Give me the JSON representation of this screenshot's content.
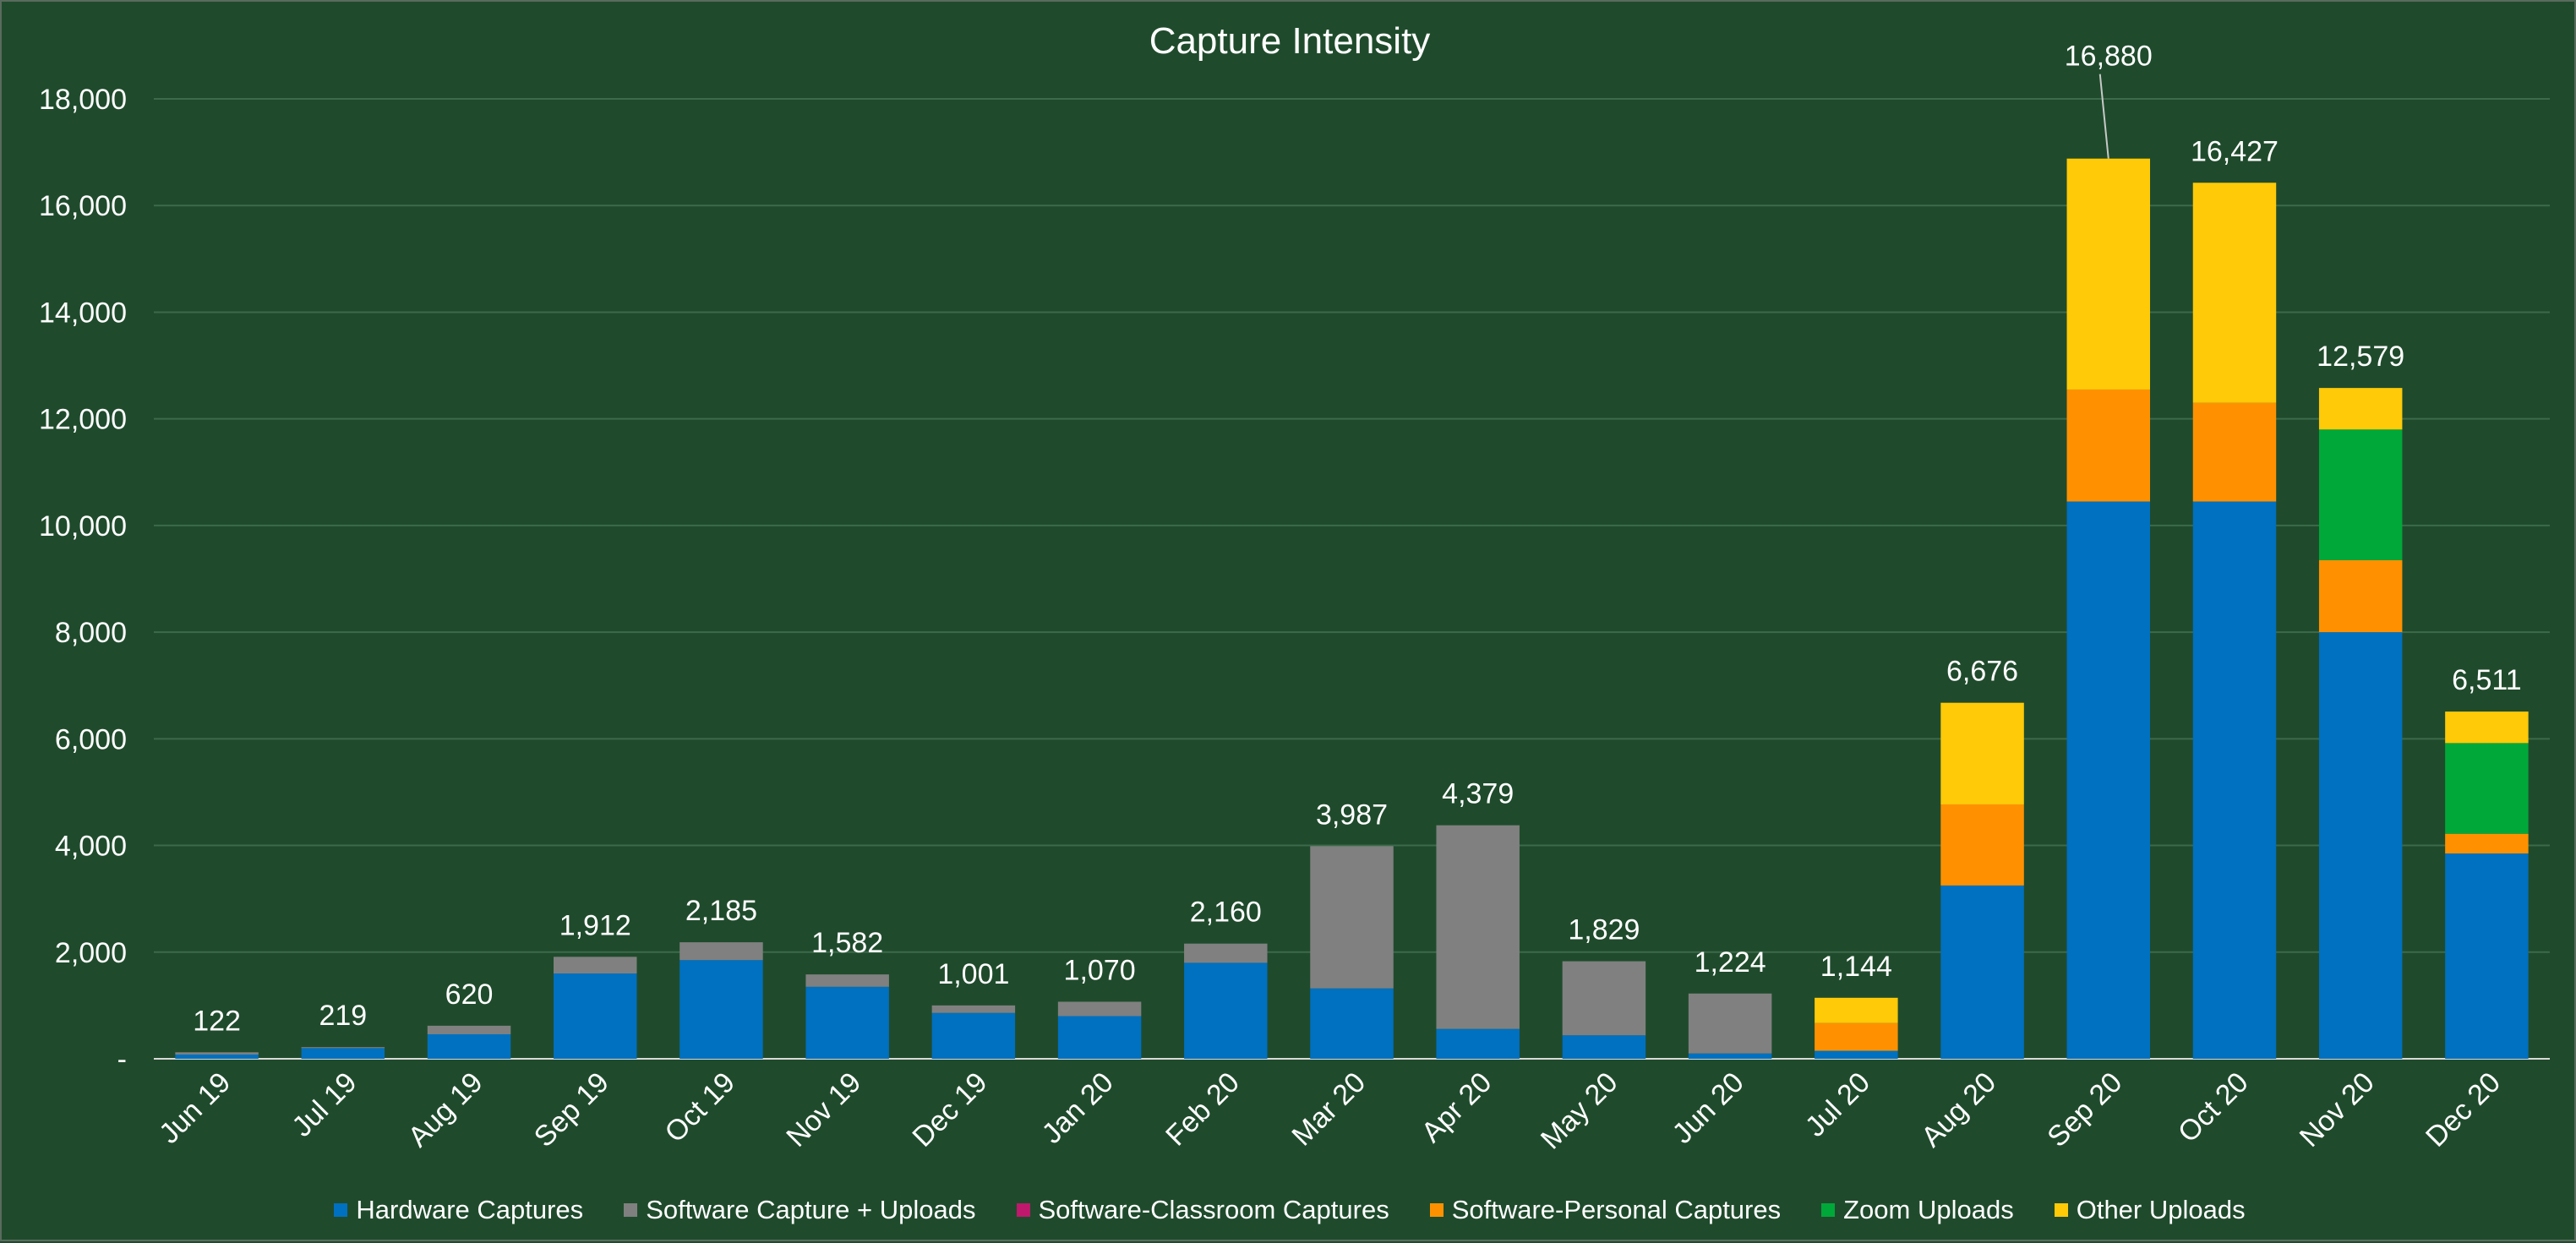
{
  "chart_data": {
    "type": "bar",
    "stacked": true,
    "title": "Capture Intensity",
    "xlabel": "",
    "ylabel": "",
    "ylim": [
      0,
      18000
    ],
    "yticks": [
      0,
      2000,
      4000,
      6000,
      8000,
      10000,
      12000,
      14000,
      16000,
      18000
    ],
    "ytick_labels": [
      "-",
      "2,000",
      "4,000",
      "6,000",
      "8,000",
      "10,000",
      "12,000",
      "14,000",
      "16,000",
      "18,000"
    ],
    "grid": true,
    "legend_position": "bottom",
    "background_color": "#1f4b2c",
    "categories": [
      "Jun 19",
      "Jul 19",
      "Aug 19",
      "Sep 19",
      "Oct 19",
      "Nov 19",
      "Dec 19",
      "Jan 20",
      "Feb 20",
      "Mar 20",
      "Apr 20",
      "May 20",
      "Jun 20",
      "Jul 20",
      "Aug 20",
      "Sep 20",
      "Oct 20",
      "Nov 20",
      "Dec 20"
    ],
    "series": [
      {
        "name": "Hardware Captures",
        "color": "#0070c0",
        "values": [
          80,
          200,
          460,
          1600,
          1850,
          1350,
          860,
          800,
          1800,
          1320,
          560,
          440,
          100,
          150,
          3250,
          10450,
          10450,
          8000,
          3850
        ]
      },
      {
        "name": "Software Capture + Uploads",
        "color": "#808080",
        "values": [
          42,
          19,
          160,
          312,
          335,
          232,
          141,
          270,
          360,
          2667,
          3819,
          1389,
          1124,
          0,
          0,
          0,
          0,
          0,
          0
        ]
      },
      {
        "name": "Software-Classroom Captures",
        "color": "#c0186c",
        "values": [
          0,
          0,
          0,
          0,
          0,
          0,
          0,
          0,
          0,
          0,
          0,
          0,
          0,
          0,
          0,
          0,
          0,
          0,
          0
        ]
      },
      {
        "name": "Software-Personal Captures",
        "color": "#ff9100",
        "values": [
          0,
          0,
          0,
          0,
          0,
          0,
          0,
          0,
          0,
          0,
          0,
          0,
          0,
          520,
          1520,
          2100,
          1850,
          1350,
          370
        ]
      },
      {
        "name": "Zoom Uploads",
        "color": "#00a83a",
        "values": [
          0,
          0,
          0,
          0,
          0,
          0,
          0,
          0,
          0,
          0,
          0,
          0,
          0,
          0,
          0,
          0,
          0,
          2450,
          1700
        ]
      },
      {
        "name": "Other Uploads",
        "color": "#ffca08",
        "values": [
          0,
          0,
          0,
          0,
          0,
          0,
          0,
          0,
          0,
          0,
          0,
          0,
          0,
          474,
          1906,
          4330,
          4127,
          779,
          591
        ]
      }
    ],
    "totals": [
      122,
      219,
      620,
      1912,
      2185,
      1582,
      1001,
      1070,
      2160,
      3987,
      4379,
      1829,
      1224,
      1144,
      6676,
      16880,
      16427,
      12579,
      6511
    ],
    "total_labels": [
      "122",
      "219",
      "620",
      "1,912",
      "2,185",
      "1,582",
      "1,001",
      "1,070",
      "2,160",
      "3,987",
      "4,379",
      "1,829",
      "1,224",
      "1,144",
      "6,676",
      "16,880",
      "16,427",
      "12,579",
      "6,511"
    ],
    "label_leader_line_on": [
      "Sep 20"
    ],
    "grid_color": "#3c6a4a",
    "axis_color": "#d9d9d9"
  }
}
